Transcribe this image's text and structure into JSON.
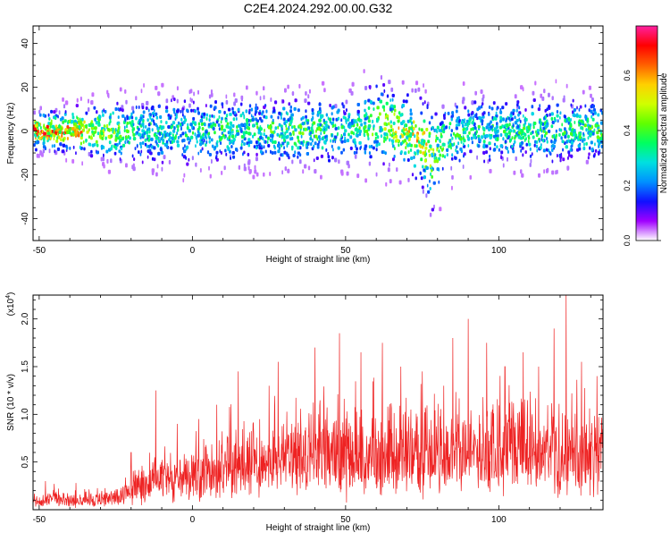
{
  "figure": {
    "title": "C2E4.2024.292.00.00.G32"
  },
  "colors": {
    "snr_line": "#ee2222",
    "axes": "#000000",
    "colormap": [
      "#ffffff",
      "#a000ff",
      "#1010ff",
      "#0090ff",
      "#00e0e0",
      "#00ff60",
      "#60ff00",
      "#d0ff00",
      "#ffd000",
      "#ff6000",
      "#ff0000",
      "#ff20a0"
    ]
  },
  "chart_data": [
    {
      "type": "heatmap",
      "title": "",
      "xlabel": "Height of straight line (km)",
      "ylabel": "Frequency (Hz)",
      "xlim": [
        -52,
        134
      ],
      "ylim": [
        -50,
        48
      ],
      "xticks": [
        -50,
        0,
        50,
        100
      ],
      "yticks": [
        -40,
        -20,
        0,
        20,
        40
      ],
      "colorbar": {
        "label": "Normalized spectral amplitude",
        "range": [
          0.0,
          0.78
        ],
        "ticks": [
          "0.0",
          "0.2",
          "0.4",
          "0.6"
        ],
        "tick_values": [
          0.0,
          0.2,
          0.4,
          0.6
        ]
      },
      "band_profile": {
        "x": [
          -52,
          -40,
          -30,
          -20,
          -10,
          0,
          10,
          20,
          30,
          40,
          50,
          55,
          60,
          65,
          70,
          75,
          78,
          82,
          90,
          100,
          110,
          120,
          134
        ],
        "center_hz": [
          0,
          0,
          0,
          0,
          0,
          0,
          0,
          0,
          0,
          0,
          0,
          2,
          3,
          2,
          0,
          -6,
          -12,
          -4,
          0,
          0,
          0,
          0,
          0
        ],
        "half_width_hz": [
          4,
          5,
          6,
          8,
          8,
          8,
          8,
          8,
          8,
          8,
          8,
          9,
          10,
          9,
          9,
          10,
          12,
          9,
          8,
          8,
          8,
          8,
          7
        ],
        "peak_amplitude": [
          0.6,
          0.55,
          0.45,
          0.3,
          0.3,
          0.3,
          0.32,
          0.32,
          0.35,
          0.35,
          0.3,
          0.32,
          0.4,
          0.45,
          0.45,
          0.5,
          0.4,
          0.35,
          0.3,
          0.3,
          0.32,
          0.32,
          0.35
        ]
      }
    },
    {
      "type": "line",
      "title": "",
      "xlabel": "Height of straight line (km)",
      "ylabel": "SNR (10 * v/v)",
      "y_multiplier_label": "(x10^4)",
      "xlim": [
        -52,
        134
      ],
      "ylim": [
        0,
        2.25
      ],
      "xticks": [
        -50,
        0,
        50,
        100
      ],
      "yticks": [
        0.5,
        1.0,
        1.5,
        2.0
      ],
      "series": [
        {
          "x": [
            -52,
            -45,
            -40,
            -30,
            -25,
            -20,
            -15,
            -10,
            -5,
            0,
            5,
            10,
            15,
            20,
            25,
            30,
            40,
            50,
            60,
            70,
            80,
            90,
            100,
            110,
            120,
            125,
            134
          ],
          "values": [
            0.12,
            0.18,
            0.15,
            0.16,
            0.2,
            0.3,
            0.45,
            0.5,
            0.55,
            0.55,
            0.6,
            0.65,
            0.7,
            0.75,
            0.8,
            0.85,
            0.85,
            0.9,
            0.9,
            0.85,
            0.95,
            0.9,
            0.9,
            0.95,
            0.9,
            1.0,
            0.9
          ],
          "peaks": [
            [
              -48,
              0.3
            ],
            [
              -38,
              0.28
            ],
            [
              -20,
              0.6
            ],
            [
              -12,
              1.25
            ],
            [
              -5,
              0.9
            ],
            [
              2,
              0.95
            ],
            [
              8,
              1.1
            ],
            [
              15,
              1.45
            ],
            [
              25,
              1.3
            ],
            [
              28,
              1.55
            ],
            [
              40,
              1.7
            ],
            [
              48,
              1.85
            ],
            [
              55,
              1.65
            ],
            [
              62,
              1.75
            ],
            [
              68,
              1.5
            ],
            [
              75,
              1.45
            ],
            [
              82,
              1.3
            ],
            [
              85,
              1.8
            ],
            [
              90,
              2.0
            ],
            [
              96,
              1.75
            ],
            [
              102,
              1.5
            ],
            [
              108,
              1.65
            ],
            [
              113,
              1.5
            ],
            [
              118,
              1.9
            ],
            [
              122,
              2.25
            ],
            [
              127,
              1.55
            ],
            [
              132,
              1.4
            ]
          ]
        }
      ]
    }
  ]
}
